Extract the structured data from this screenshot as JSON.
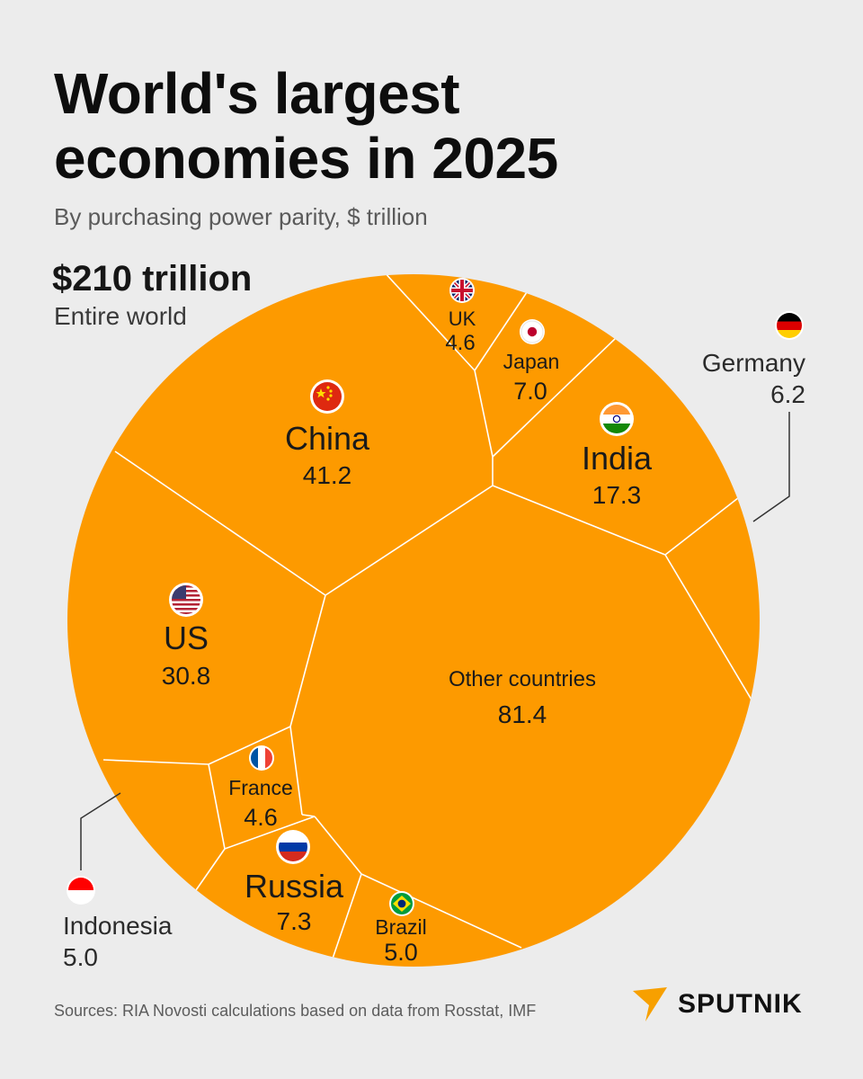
{
  "header": {
    "title": "World's largest economies in 2025",
    "subtitle": "By purchasing power parity, $ trillion"
  },
  "total": {
    "value": "$210 trillion",
    "label": "Entire world"
  },
  "chart_data": {
    "type": "voronoi-treemap",
    "unit": "$ trillion",
    "total": 210,
    "cells": [
      {
        "name": "China",
        "value": 41.2,
        "flag": "china-flag-icon"
      },
      {
        "name": "UK",
        "value": 4.6,
        "flag": "uk-flag-icon"
      },
      {
        "name": "Japan",
        "value": 7.0,
        "flag": "japan-flag-icon"
      },
      {
        "name": "India",
        "value": 17.3,
        "flag": "india-flag-icon"
      },
      {
        "name": "Germany",
        "value": 6.2,
        "flag": "germany-flag-icon"
      },
      {
        "name": "US",
        "value": 30.8,
        "flag": "us-flag-icon"
      },
      {
        "name": "Other countries",
        "value": 81.4,
        "flag": ""
      },
      {
        "name": "France",
        "value": 4.6,
        "flag": "france-flag-icon"
      },
      {
        "name": "Russia",
        "value": 7.3,
        "flag": "russia-flag-icon"
      },
      {
        "name": "Brazil",
        "value": 5.0,
        "flag": "brazil-flag-icon"
      },
      {
        "name": "Indonesia",
        "value": 5.0,
        "flag": "indonesia-flag-icon"
      }
    ]
  },
  "colors": {
    "cell_fill": "#fd9a00",
    "cell_border": "#ffffff",
    "leader_line": "#333333"
  },
  "footer": {
    "source": "Sources: RIA Novosti calculations based on data from Rosstat, IMF",
    "brand": "SPUTNIK"
  }
}
